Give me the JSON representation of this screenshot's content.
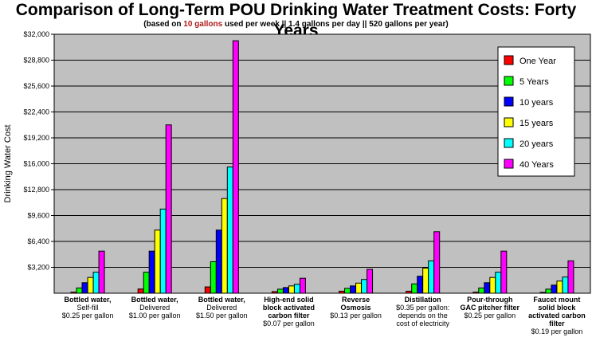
{
  "title": "Comparison of Long-Term POU Drinking Water Treatment Costs: Forty Years",
  "subtitle": {
    "pre": "(based on ",
    "highlight": "10 gallons",
    "post": " used per week || 1.4 gallons per day || 520 gallons per year)"
  },
  "colors": {
    "plot_bg": "#c0c0c0",
    "gridline": "#000000"
  },
  "chart_data": {
    "type": "bar",
    "ylabel": "Drinking Water Cost",
    "ylim": [
      0,
      32000
    ],
    "yticks": [
      3200,
      6400,
      9600,
      12800,
      16000,
      19200,
      22400,
      25600,
      28800,
      32000
    ],
    "ytick_labels": [
      "$3,200",
      "$6,400",
      "$9,600",
      "$12,800",
      "$16,000",
      "$19,200",
      "$22,400",
      "$25,600",
      "$28,800",
      "$32,000"
    ],
    "grid": true,
    "legend_position": "top-right",
    "categories": [
      [
        "Bottled water,",
        "Self-fill",
        "$0.25 per gallon"
      ],
      [
        "Bottled water,",
        "Delivered",
        "$1.00 per gallon"
      ],
      [
        "Bottled water,",
        "Delivered",
        "$1.50 per gallon"
      ],
      [
        "High-end solid",
        "block activated",
        "carbon filter",
        "$0.07 per gallon"
      ],
      [
        "Reverse",
        "Osmosis",
        "$0.13 per gallon"
      ],
      [
        "Distillation",
        "$0.35 per gallon:",
        "depends on the",
        "cost of electricity"
      ],
      [
        "Pour-through",
        "GAC pitcher filter",
        "$0.25 per gallon"
      ],
      [
        "Faucet mount",
        "solid block",
        "activated carbon",
        "filter",
        "$0.19 per gallon"
      ]
    ],
    "category_bold_lines": [
      1,
      1,
      1,
      3,
      2,
      1,
      2,
      4
    ],
    "series": [
      {
        "name": "One Year",
        "color": "#ff0000",
        "values": [
          130,
          520,
          780,
          200,
          250,
          250,
          130,
          100
        ]
      },
      {
        "name": "5 Years",
        "color": "#00ff00",
        "values": [
          650,
          2600,
          3900,
          500,
          600,
          1150,
          650,
          500
        ]
      },
      {
        "name": "10 years",
        "color": "#0000ff",
        "values": [
          1300,
          5200,
          7800,
          700,
          900,
          2100,
          1300,
          1000
        ]
      },
      {
        "name": "15 years",
        "color": "#ffff00",
        "values": [
          1950,
          7800,
          11700,
          900,
          1250,
          3100,
          1950,
          1500
        ]
      },
      {
        "name": "20 years",
        "color": "#00ffff",
        "values": [
          2600,
          10400,
          15600,
          1100,
          1700,
          4000,
          2600,
          2000
        ]
      },
      {
        "name": "40 Years",
        "color": "#ff00ff",
        "values": [
          5200,
          20800,
          31200,
          1850,
          2950,
          7600,
          5200,
          4000
        ]
      }
    ]
  }
}
